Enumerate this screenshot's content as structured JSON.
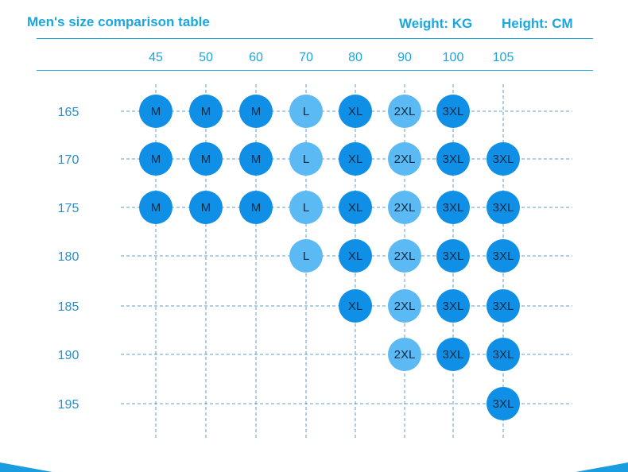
{
  "header": {
    "title": "Men's size comparison table",
    "weight_unit": "Weight: KG",
    "height_unit": "Height: CM"
  },
  "colors": {
    "accent": "#19a7e0",
    "header_text": "#1aa5de",
    "row_label": "#2a8fc8",
    "grid_line": "#2a7fb8",
    "dot_dark": "#0f8fe6",
    "dot_light": "#5bb9f3",
    "dot_text": "#0b2a44"
  },
  "table": {
    "weights": [
      "45",
      "50",
      "60",
      "70",
      "80",
      "90",
      "100",
      "105"
    ],
    "heights": [
      "165",
      "170",
      "175",
      "180",
      "185",
      "190",
      "195"
    ],
    "light_sizes": [
      "L",
      "2XL"
    ],
    "sizes": [
      [
        "M",
        "M",
        "M",
        "L",
        "XL",
        "2XL",
        "3XL",
        ""
      ],
      [
        "M",
        "M",
        "M",
        "L",
        "XL",
        "2XL",
        "3XL",
        "3XL"
      ],
      [
        "M",
        "M",
        "M",
        "L",
        "XL",
        "2XL",
        "3XL",
        "3XL"
      ],
      [
        "",
        "",
        "",
        "L",
        "XL",
        "2XL",
        "3XL",
        "3XL"
      ],
      [
        "",
        "",
        "",
        "",
        "XL",
        "2XL",
        "3XL",
        "3XL"
      ],
      [
        "",
        "",
        "",
        "",
        "",
        "2XL",
        "3XL",
        "3XL"
      ],
      [
        "",
        "",
        "",
        "",
        "",
        "",
        "",
        "3XL"
      ]
    ]
  }
}
